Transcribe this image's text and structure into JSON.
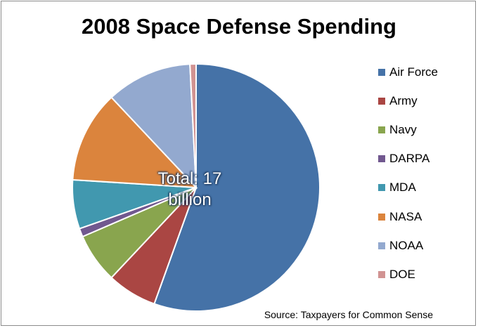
{
  "chart_data": {
    "type": "pie",
    "title": "2008 Space Defense Spending",
    "center_label_lines": [
      "Total: 17",
      "billion"
    ],
    "source": "Source: Taxpayers for Common Sense",
    "legend_position": "right",
    "slices": [
      {
        "label": "Air Force",
        "value": 55.5,
        "color": "#4572A7"
      },
      {
        "label": "Army",
        "value": 6.5,
        "color": "#AA4643"
      },
      {
        "label": "Navy",
        "value": 6.5,
        "color": "#89A54E"
      },
      {
        "label": "DARPA",
        "value": 1.1,
        "color": "#71588F"
      },
      {
        "label": "MDA",
        "value": 6.4,
        "color": "#4198AF"
      },
      {
        "label": "NASA",
        "value": 12.0,
        "color": "#DB843D"
      },
      {
        "label": "NOAA",
        "value": 11.2,
        "color": "#93A9CF"
      },
      {
        "label": "DOE",
        "value": 0.8,
        "color": "#D19392"
      }
    ]
  }
}
